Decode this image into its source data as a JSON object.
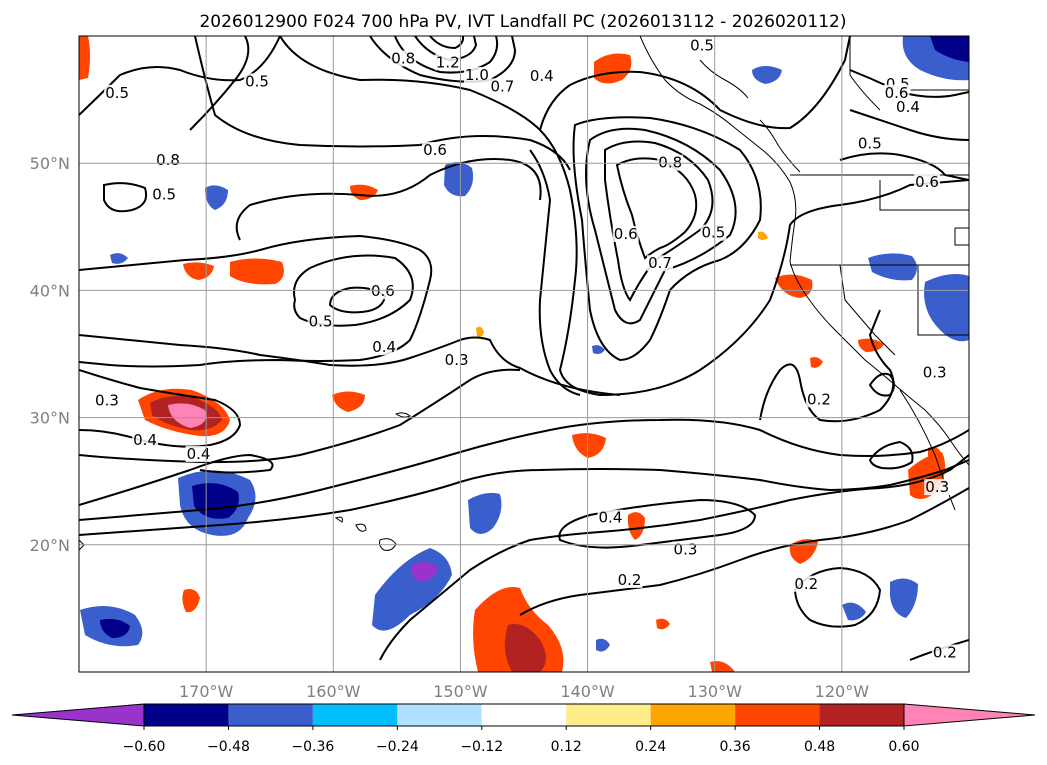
{
  "title": "2026012900 F024 700 hPa PV, IVT Landfall PC (2026013112 - 2026020112)",
  "map": {
    "lon_range": [
      -180,
      -110
    ],
    "lat_range": [
      10,
      60
    ],
    "lat_ticks": [
      {
        "lat": 50,
        "label": "50°N"
      },
      {
        "lat": 40,
        "label": "40°N"
      },
      {
        "lat": 30,
        "label": "30°N"
      },
      {
        "lat": 20,
        "label": "20°N"
      }
    ],
    "lon_ticks": [
      {
        "lon": -170,
        "label": "170°W"
      },
      {
        "lon": -160,
        "label": "160°W"
      },
      {
        "lon": -150,
        "label": "150°W"
      },
      {
        "lon": -140,
        "label": "140°W"
      },
      {
        "lon": -130,
        "label": "130°W"
      },
      {
        "lon": -120,
        "label": "120°W"
      }
    ],
    "gridlines": true
  },
  "colorbar": {
    "levels": [
      -0.6,
      -0.48,
      -0.36,
      -0.24,
      -0.12,
      0.12,
      0.24,
      0.36,
      0.48,
      0.6
    ],
    "tick_labels": [
      "−0.60",
      "−0.48",
      "−0.36",
      "−0.24",
      "−0.12",
      "0.12",
      "0.24",
      "0.36",
      "0.48",
      "0.60"
    ],
    "colors": [
      "#9933cc",
      "#00008b",
      "#3a5fcd",
      "#00bfff",
      "#b0e2ff",
      "#ffffff",
      "#ffec8b",
      "#ffa500",
      "#ff4500",
      "#b22222",
      "#ff83b4"
    ],
    "extend": "both"
  },
  "contour_labels": [
    {
      "text": "0.5",
      "lon": -177.0,
      "lat": 55.3
    },
    {
      "text": "0.5",
      "lon": -173.3,
      "lat": 47.3
    },
    {
      "text": "0.5",
      "lon": -166.0,
      "lat": 56.2
    },
    {
      "text": "0.8",
      "lon": -173.0,
      "lat": 50.0
    },
    {
      "text": "1.2",
      "lon": -151.0,
      "lat": 57.7
    },
    {
      "text": "1.0",
      "lon": -148.7,
      "lat": 56.7
    },
    {
      "text": "0.7",
      "lon": -146.7,
      "lat": 55.8
    },
    {
      "text": "0.8",
      "lon": -154.5,
      "lat": 58.0
    },
    {
      "text": "0.4",
      "lon": -143.6,
      "lat": 56.6
    },
    {
      "text": "0.6",
      "lon": -152.0,
      "lat": 50.8
    },
    {
      "text": "0.5",
      "lon": -131.0,
      "lat": 59.0
    },
    {
      "text": "0.8",
      "lon": -133.5,
      "lat": 49.8
    },
    {
      "text": "0.6",
      "lon": -137.0,
      "lat": 44.2
    },
    {
      "text": "0.7",
      "lon": -134.3,
      "lat": 41.9
    },
    {
      "text": "0.5",
      "lon": -130.1,
      "lat": 44.3
    },
    {
      "text": "0.6",
      "lon": -156.1,
      "lat": 39.7
    },
    {
      "text": "0.5",
      "lon": -161.0,
      "lat": 37.3
    },
    {
      "text": "0.4",
      "lon": -156.0,
      "lat": 35.3
    },
    {
      "text": "0.3",
      "lon": -150.3,
      "lat": 34.3
    },
    {
      "text": "0.3",
      "lon": -177.8,
      "lat": 31.1
    },
    {
      "text": "0.4",
      "lon": -174.8,
      "lat": 28.0
    },
    {
      "text": "0.4",
      "lon": -170.6,
      "lat": 26.9
    },
    {
      "text": "0.5",
      "lon": -115.6,
      "lat": 56.0
    },
    {
      "text": "0.6",
      "lon": -115.7,
      "lat": 55.3
    },
    {
      "text": "0.4",
      "lon": -114.8,
      "lat": 54.2
    },
    {
      "text": "0.5",
      "lon": -117.8,
      "lat": 51.3
    },
    {
      "text": "0.6",
      "lon": -113.3,
      "lat": 48.3
    },
    {
      "text": "0.2",
      "lon": -121.8,
      "lat": 31.2
    },
    {
      "text": "0.3",
      "lon": -112.7,
      "lat": 33.3
    },
    {
      "text": "0.3",
      "lon": -112.5,
      "lat": 24.3
    },
    {
      "text": "0.4",
      "lon": -138.2,
      "lat": 21.9
    },
    {
      "text": "0.3",
      "lon": -132.3,
      "lat": 19.4
    },
    {
      "text": "0.2",
      "lon": -136.7,
      "lat": 17.0
    },
    {
      "text": "0.2",
      "lon": -122.8,
      "lat": 16.7
    },
    {
      "text": "0.2",
      "lon": -111.9,
      "lat": 11.3
    }
  ]
}
